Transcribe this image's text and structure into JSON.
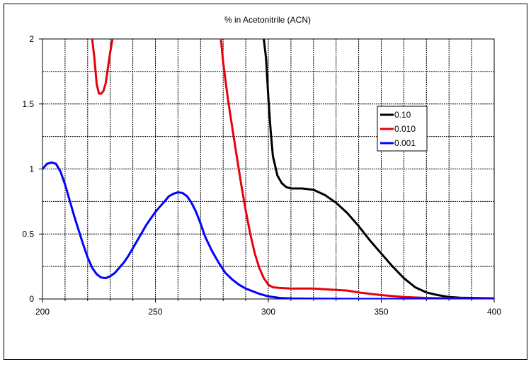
{
  "chart_data": {
    "type": "line",
    "title": "% in Acetonitrile (ACN)",
    "xlabel": "",
    "ylabel": "",
    "xlim": [
      200,
      400
    ],
    "ylim": [
      0,
      2
    ],
    "x_ticks": [
      200,
      250,
      300,
      350,
      400
    ],
    "x_tick_labels": [
      "200",
      "250",
      "300",
      "350",
      "400"
    ],
    "y_ticks": [
      0,
      0.5,
      1,
      1.5,
      2
    ],
    "y_tick_labels": [
      "0",
      "0.5",
      "1",
      "1.5",
      "2"
    ],
    "grid": true,
    "legend_position": "right",
    "series": [
      {
        "name": "0.10",
        "color": "#000000",
        "x": [
          298,
          299,
          300,
          301,
          302,
          304,
          306,
          308,
          310,
          315,
          320,
          325,
          330,
          335,
          340,
          345,
          350,
          355,
          360,
          365,
          370,
          375,
          380,
          385,
          390,
          395,
          400
        ],
        "y": [
          2.0,
          1.85,
          1.55,
          1.3,
          1.1,
          0.95,
          0.89,
          0.86,
          0.85,
          0.85,
          0.84,
          0.8,
          0.74,
          0.66,
          0.56,
          0.45,
          0.35,
          0.25,
          0.16,
          0.09,
          0.05,
          0.03,
          0.015,
          0.01,
          0.008,
          0.006,
          0.005
        ]
      },
      {
        "name": "0.010",
        "color": "#e8000b",
        "x": [
          222,
          223,
          224,
          225,
          226,
          227,
          228,
          229,
          230,
          231,
          279,
          280,
          282,
          284,
          286,
          288,
          290,
          292,
          294,
          296,
          298,
          300,
          302,
          305,
          310,
          315,
          320,
          325,
          330,
          335,
          340,
          350,
          360,
          370,
          380,
          390,
          400
        ],
        "y": [
          2.0,
          1.85,
          1.65,
          1.58,
          1.58,
          1.6,
          1.66,
          1.78,
          1.9,
          2.0,
          2.0,
          1.82,
          1.55,
          1.32,
          1.1,
          0.88,
          0.68,
          0.5,
          0.35,
          0.24,
          0.16,
          0.11,
          0.09,
          0.085,
          0.08,
          0.08,
          0.08,
          0.075,
          0.07,
          0.065,
          0.05,
          0.03,
          0.015,
          0.008,
          0.005,
          0.003,
          0.002
        ]
      },
      {
        "name": "0.001",
        "color": "#0000ff",
        "x": [
          200,
          202,
          204,
          206,
          208,
          210,
          212,
          214,
          216,
          218,
          220,
          222,
          224,
          226,
          228,
          230,
          232,
          234,
          236,
          238,
          240,
          242,
          244,
          246,
          248,
          250,
          252,
          254,
          256,
          258,
          260,
          262,
          264,
          266,
          268,
          270,
          272,
          275,
          278,
          281,
          284,
          287,
          290,
          293,
          296,
          300,
          305,
          310,
          320,
          340,
          360,
          380,
          400
        ],
        "y": [
          1.0,
          1.04,
          1.05,
          1.04,
          0.98,
          0.88,
          0.76,
          0.64,
          0.53,
          0.42,
          0.32,
          0.24,
          0.19,
          0.165,
          0.16,
          0.175,
          0.2,
          0.24,
          0.28,
          0.33,
          0.39,
          0.45,
          0.51,
          0.57,
          0.62,
          0.67,
          0.71,
          0.75,
          0.79,
          0.81,
          0.82,
          0.815,
          0.79,
          0.74,
          0.67,
          0.58,
          0.48,
          0.37,
          0.28,
          0.2,
          0.15,
          0.11,
          0.08,
          0.06,
          0.04,
          0.02,
          0.008,
          0.004,
          0.002,
          0.0,
          0.0,
          0.0,
          0.0
        ]
      }
    ]
  }
}
